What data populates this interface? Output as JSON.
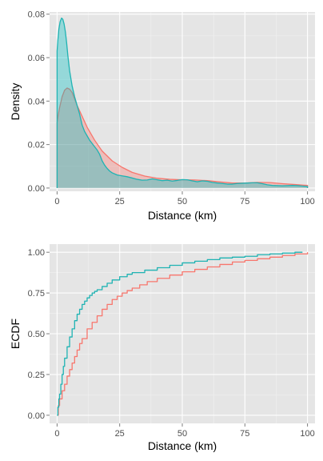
{
  "chart_data": [
    {
      "type": "area",
      "xlabel": "Distance (km)",
      "ylabel": "Density",
      "xlim": [
        -3,
        103
      ],
      "ylim": [
        -0.0015,
        0.081
      ],
      "x_ticks": [
        0,
        25,
        50,
        75,
        100
      ],
      "x_tick_labels": [
        "0",
        "25",
        "50",
        "75",
        "100"
      ],
      "y_ticks": [
        0,
        0.02,
        0.04,
        0.06,
        0.08
      ],
      "y_tick_labels": [
        "0.00",
        "0.02",
        "0.04",
        "0.06",
        "0.08"
      ],
      "grid": true,
      "legend": "none",
      "series": [
        {
          "color": "#F8766D",
          "fill": "rgba(248,118,109,0.35)",
          "x": [
            0,
            0.5,
            1,
            2,
            3,
            4,
            5,
            6,
            7,
            8,
            10,
            12,
            15,
            18,
            22,
            26,
            30,
            35,
            40,
            45,
            50,
            55,
            60,
            65,
            70,
            75,
            80,
            85,
            90,
            95,
            100
          ],
          "y": [
            0.03,
            0.034,
            0.037,
            0.042,
            0.045,
            0.046,
            0.0455,
            0.044,
            0.041,
            0.038,
            0.033,
            0.028,
            0.022,
            0.017,
            0.0125,
            0.0095,
            0.0072,
            0.0055,
            0.0045,
            0.004,
            0.0038,
            0.0037,
            0.0034,
            0.0028,
            0.0023,
            0.0023,
            0.0026,
            0.0025,
            0.002,
            0.0016,
            0.0012
          ]
        },
        {
          "color": "#1FB3B3",
          "fill": "rgba(0,191,196,0.35)",
          "x": [
            0,
            0.3,
            0.7,
            1.2,
            1.8,
            2.3,
            2.8,
            3.3,
            3.8,
            4.3,
            5,
            6,
            7,
            8,
            9,
            10,
            11,
            12,
            13,
            14,
            15,
            16,
            17,
            18,
            19,
            20,
            21,
            22,
            24,
            26,
            28,
            30,
            32,
            34,
            36,
            38,
            40,
            42,
            44,
            46,
            48,
            50,
            52,
            54,
            56,
            58,
            60,
            62,
            64,
            66,
            68,
            70,
            72,
            74,
            76,
            78,
            80,
            82,
            84,
            86,
            88,
            90,
            92,
            94,
            96,
            98,
            100
          ],
          "y": [
            0.063,
            0.068,
            0.073,
            0.0765,
            0.0782,
            0.0776,
            0.0755,
            0.072,
            0.067,
            0.061,
            0.054,
            0.047,
            0.042,
            0.038,
            0.034,
            0.029,
            0.026,
            0.024,
            0.022,
            0.0205,
            0.019,
            0.0175,
            0.0155,
            0.0125,
            0.0105,
            0.009,
            0.0078,
            0.007,
            0.006,
            0.0056,
            0.0052,
            0.0046,
            0.004,
            0.0036,
            0.0037,
            0.0042,
            0.0038,
            0.0034,
            0.0036,
            0.0032,
            0.0035,
            0.0039,
            0.0038,
            0.0033,
            0.0029,
            0.0033,
            0.0031,
            0.0026,
            0.0023,
            0.0021,
            0.0018,
            0.0018,
            0.0021,
            0.0022,
            0.0023,
            0.0024,
            0.0024,
            0.002,
            0.0015,
            0.0012,
            0.0011,
            0.001,
            0.0011,
            0.0012,
            0.0011,
            0.0009,
            0.0007
          ]
        }
      ]
    },
    {
      "type": "line",
      "xlabel": "Distance (km)",
      "ylabel": "ECDF",
      "xlim": [
        -3,
        103
      ],
      "ylim": [
        -0.05,
        1.05
      ],
      "x_ticks": [
        0,
        25,
        50,
        75,
        100
      ],
      "x_tick_labels": [
        "0",
        "25",
        "50",
        "75",
        "100"
      ],
      "y_ticks": [
        0,
        0.25,
        0.5,
        0.75,
        1.0
      ],
      "y_tick_labels": [
        "0.00",
        "0.25",
        "0.50",
        "0.75",
        "1.00"
      ],
      "grid": true,
      "legend": "none",
      "series": [
        {
          "color": "#F8766D",
          "x": [
            0,
            0.5,
            1,
            2,
            3,
            4,
            5,
            6,
            7,
            8,
            9,
            10,
            12,
            14,
            16,
            18,
            20,
            22,
            24,
            26,
            28,
            30,
            33,
            36,
            40,
            45,
            50,
            55,
            60,
            65,
            70,
            75,
            80,
            85,
            90,
            95,
            100
          ],
          "y": [
            0.0,
            0.06,
            0.1,
            0.15,
            0.19,
            0.24,
            0.28,
            0.32,
            0.36,
            0.4,
            0.44,
            0.47,
            0.53,
            0.57,
            0.61,
            0.65,
            0.68,
            0.71,
            0.73,
            0.75,
            0.765,
            0.78,
            0.8,
            0.82,
            0.84,
            0.86,
            0.88,
            0.895,
            0.91,
            0.925,
            0.94,
            0.95,
            0.96,
            0.97,
            0.98,
            0.99,
            1.0
          ]
        },
        {
          "color": "#1FB3B3",
          "x": [
            0,
            0.3,
            0.7,
            1,
            1.5,
            2,
            2.5,
            3,
            4,
            5,
            6,
            7,
            8,
            9,
            10,
            11,
            12,
            13,
            14,
            15,
            16,
            18,
            20,
            22,
            25,
            28,
            30,
            35,
            40,
            45,
            50,
            55,
            60,
            65,
            70,
            75,
            80,
            85,
            90,
            95,
            98
          ],
          "y": [
            0.0,
            0.05,
            0.1,
            0.13,
            0.19,
            0.25,
            0.3,
            0.35,
            0.42,
            0.48,
            0.53,
            0.58,
            0.62,
            0.65,
            0.68,
            0.7,
            0.72,
            0.735,
            0.75,
            0.76,
            0.77,
            0.79,
            0.81,
            0.83,
            0.85,
            0.865,
            0.875,
            0.89,
            0.905,
            0.92,
            0.935,
            0.945,
            0.955,
            0.965,
            0.97,
            0.975,
            0.985,
            0.99,
            0.995,
            1.0,
            1.0
          ]
        }
      ]
    }
  ]
}
